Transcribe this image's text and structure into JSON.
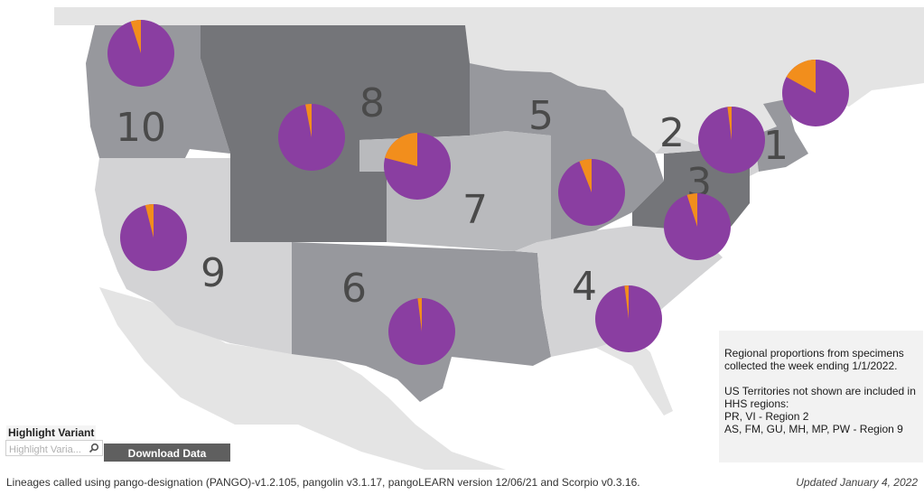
{
  "map": {
    "region_labels": [
      "1",
      "2",
      "3",
      "4",
      "5",
      "6",
      "7",
      "8",
      "9",
      "10"
    ],
    "colors": {
      "purple": "#8a3ea1",
      "orange": "#f28e1c",
      "land": "#e4e4e4",
      "ocean": "#ffffff",
      "shade_dark": "#747579",
      "shade_mid": "#97989d",
      "shade_light": "#b9babd",
      "shade_pale": "#d3d3d5"
    },
    "pies": [
      {
        "region": "10",
        "orange_share": 0.05
      },
      {
        "region": "8",
        "orange_share": 0.03
      },
      {
        "region": "7",
        "orange_share": 0.21
      },
      {
        "region": "5",
        "orange_share": 0.06
      },
      {
        "region": "2",
        "orange_share": 0.02
      },
      {
        "region": "1",
        "orange_share": 0.17
      },
      {
        "region": "3",
        "orange_share": 0.05
      },
      {
        "region": "9",
        "orange_share": 0.04
      },
      {
        "region": "6",
        "orange_share": 0.02
      },
      {
        "region": "4",
        "orange_share": 0.02
      }
    ]
  },
  "notes": {
    "line1": "Regional proportions from specimens collected the week ending 1/1/2022.",
    "line2": "US Territories not shown are included in HHS regions:",
    "line3": "PR, VI - Region 2",
    "line4": "AS, FM, GU, MH, MP, PW - Region 9"
  },
  "controls": {
    "highlight_title": "Highlight Variant",
    "highlight_placeholder": "Highlight Varia...",
    "download_label": "Download Data",
    "search_icon": "magnifier-icon"
  },
  "footer": {
    "lineages": "Lineages called using pango-designation (PANGO)-v1.2.105, pangolin v3.1.17, pangoLEARN version 12/06/21 and Scorpio v0.3.16.",
    "updated": "Updated January 4, 2022"
  }
}
